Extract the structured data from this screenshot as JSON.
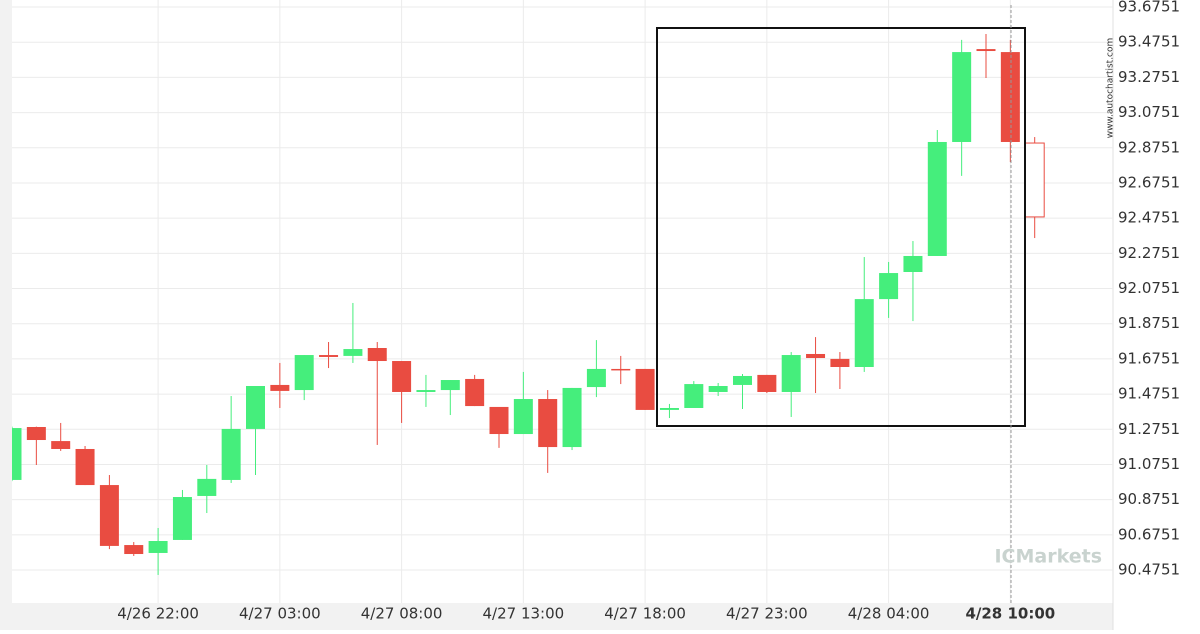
{
  "chart_data": {
    "type": "candlestick",
    "categories": [
      null,
      null,
      null,
      null,
      null,
      null,
      "4/26 22:00",
      null,
      null,
      null,
      null,
      "4/27 03:00",
      null,
      null,
      null,
      null,
      "4/27 08:00",
      null,
      null,
      null,
      null,
      "4/27 13:00",
      null,
      null,
      null,
      null,
      "4/27 18:00",
      null,
      null,
      null,
      null,
      "4/27 23:00",
      null,
      null,
      null,
      null,
      "4/28 04:00",
      null,
      null,
      null,
      null,
      "4/28 10:00",
      null
    ],
    "open": [
      90.987,
      91.288,
      91.208,
      91.163,
      90.958,
      90.617,
      90.572,
      90.646,
      90.896,
      90.987,
      91.277,
      91.527,
      91.498,
      91.697,
      91.692,
      91.737,
      91.663,
      91.487,
      91.498,
      91.561,
      91.402,
      91.248,
      91.447,
      91.174,
      91.515,
      91.618,
      91.618,
      91.385,
      91.396,
      91.487,
      91.527,
      91.584,
      91.487,
      91.703,
      91.675,
      91.629,
      92.015,
      92.169,
      92.26,
      92.908,
      93.436,
      93.419,
      92.902
    ],
    "high": [
      91.29,
      91.29,
      91.311,
      91.18,
      91.015,
      90.634,
      90.714,
      90.93,
      91.072,
      91.464,
      91.521,
      91.652,
      91.697,
      91.771,
      91.993,
      91.771,
      91.663,
      91.584,
      91.555,
      91.584,
      91.402,
      91.601,
      91.498,
      91.51,
      91.782,
      91.692,
      91.618,
      91.419,
      91.549,
      91.538,
      91.589,
      91.584,
      91.714,
      91.799,
      91.714,
      92.254,
      92.226,
      92.345,
      92.976,
      93.488,
      93.522,
      93.488,
      92.936
    ],
    "low": [
      90.98,
      91.072,
      91.152,
      90.958,
      90.594,
      90.555,
      90.447,
      90.646,
      90.799,
      90.97,
      91.015,
      91.396,
      91.441,
      91.623,
      91.652,
      91.186,
      91.311,
      91.402,
      91.356,
      91.407,
      91.169,
      91.248,
      91.027,
      91.157,
      91.458,
      91.532,
      91.385,
      91.339,
      91.396,
      91.464,
      91.39,
      91.481,
      91.345,
      91.481,
      91.504,
      91.601,
      91.908,
      91.89,
      92.26,
      92.715,
      93.272,
      92.794,
      92.362
    ],
    "close": [
      91.282,
      91.214,
      91.163,
      90.958,
      90.612,
      90.566,
      90.64,
      90.89,
      90.993,
      91.277,
      91.521,
      91.493,
      91.697,
      91.686,
      91.731,
      91.663,
      91.487,
      91.498,
      91.555,
      91.407,
      91.248,
      91.447,
      91.174,
      91.51,
      91.618,
      91.612,
      91.385,
      91.396,
      91.532,
      91.521,
      91.578,
      91.487,
      91.697,
      91.68,
      91.629,
      92.015,
      92.163,
      92.26,
      92.908,
      93.419,
      93.425,
      92.908,
      92.482
    ],
    "up_color": "#45ee7c",
    "down_color": "#e94c41",
    "ylim": [
      90.2876,
      93.715
    ],
    "yticks": [
      90.4751,
      90.6751,
      90.8751,
      91.0751,
      91.2751,
      91.4751,
      91.6751,
      91.8751,
      92.0751,
      92.2751,
      92.4751,
      92.6751,
      92.8751,
      93.0751,
      93.2751,
      93.4751,
      93.6751
    ],
    "grid": true,
    "annotations": [
      "www.autochartist.com",
      "ICMarkets"
    ]
  }
}
